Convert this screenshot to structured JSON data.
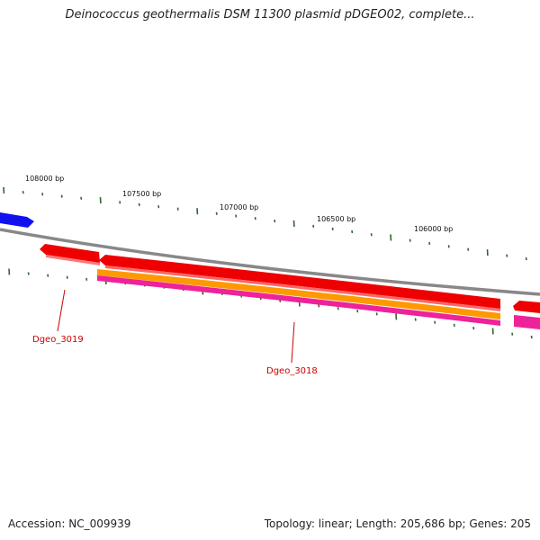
{
  "title": "Deinococcus geothermalis DSM 11300 plasmid pDGEO02, complete...",
  "footer": {
    "accession": "Accession: NC_009939",
    "summary": "Topology: linear; Length: 205,686 bp; Genes: 205"
  },
  "scale": {
    "labels": [
      "108000 bp",
      "107500 bp",
      "107000 bp",
      "106500 bp",
      "106000 bp"
    ],
    "label_positions_bp": [
      108000,
      107500,
      107000,
      106500,
      106000
    ]
  },
  "genes": [
    {
      "name": "Dgeo_3019",
      "color": "#ee0000"
    },
    {
      "name": "Dgeo_3018",
      "color": "#ee0000"
    }
  ],
  "colors": {
    "backbone": "#888888",
    "gene": "#ee0000",
    "cds": "#ff9900",
    "feature": "#ee2299",
    "blue_feature": "#1111ee",
    "ticks": "#336633"
  }
}
